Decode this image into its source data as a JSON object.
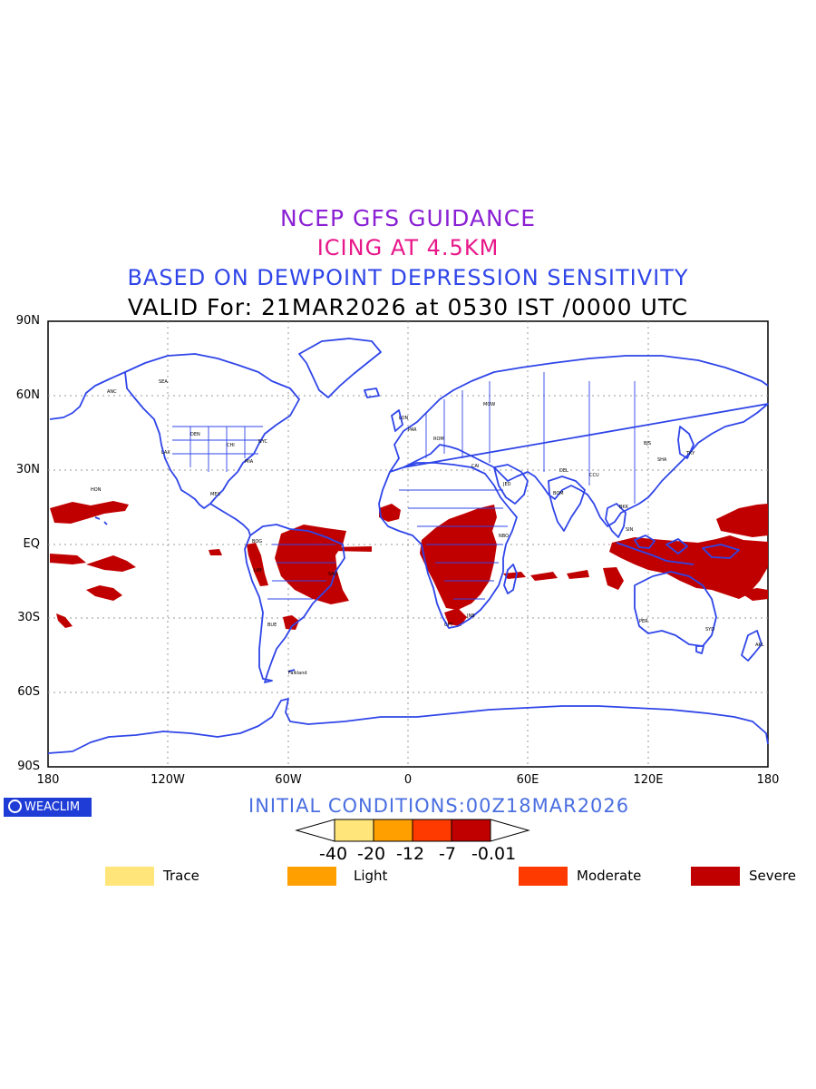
{
  "header": {
    "line1": "NCEP GFS GUIDANCE",
    "line2": "ICING AT 4.5KM",
    "line3": "BASED ON DEWPOINT DEPRESSION SENSITIVITY",
    "line4": "VALID For: 21MAR2026 at 0530 IST /0000 UTC"
  },
  "axes": {
    "lat_labels": [
      "90N",
      "60N",
      "30N",
      "EQ",
      "30S",
      "60S",
      "90S"
    ],
    "lon_labels": [
      "180",
      "120W",
      "60W",
      "0",
      "60E",
      "120E",
      "180"
    ],
    "lat_range": [
      -90,
      90
    ],
    "lon_range": [
      -180,
      180
    ],
    "grid": "dotted, every 30 degrees"
  },
  "logo": {
    "text": "WEACLIM"
  },
  "initial_conditions": "INITIAL CONDITIONS:00Z18MAR2026",
  "colorbar": {
    "boundaries": [
      "-40",
      "-20",
      "-12",
      "-7",
      "-0.01"
    ],
    "colors": [
      "#ffe57a",
      "#ffa000",
      "#ff3a00",
      "#c00000"
    ]
  },
  "legend": [
    {
      "label": "Trace",
      "color": "#ffe57a"
    },
    {
      "label": "Light",
      "color": "#ffa000"
    },
    {
      "label": "Moderate",
      "color": "#ff3a00"
    },
    {
      "label": "Severe",
      "color": "#c00000"
    }
  ],
  "map_style": {
    "coastline_color": "#2f45e8",
    "icing_color": "#c00000"
  },
  "stations": [
    "ANC",
    "SEA",
    "DEN",
    "CHI",
    "NYC",
    "MIA",
    "MEX",
    "LAX",
    "HON",
    "BOG",
    "LIM",
    "SAO",
    "BUE",
    "Falkland",
    "LON",
    "PAR",
    "ROM",
    "MOW",
    "CAI",
    "JED",
    "NBO",
    "JNB",
    "CPT",
    "DEL",
    "BOM",
    "CCU",
    "BKK",
    "SIN",
    "BJS",
    "SHA",
    "TKY",
    "SYD",
    "PER",
    "AKL"
  ]
}
